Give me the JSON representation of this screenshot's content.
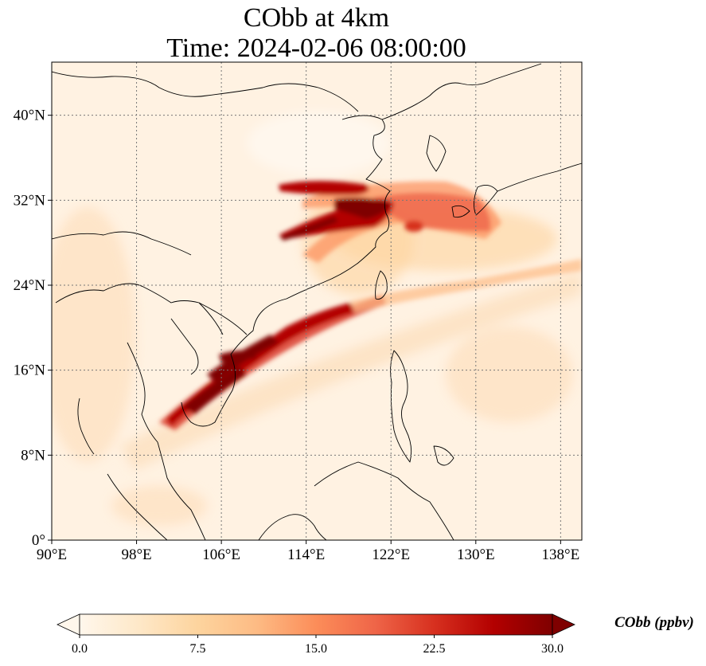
{
  "title": {
    "line1": "CObb at 4km",
    "line2": "Time: 2024-02-06 08:00:00"
  },
  "map": {
    "projection": "PlateCarree",
    "lon_range": [
      90,
      140
    ],
    "lat_range": [
      0,
      45
    ],
    "gridlines": "dotted",
    "colormap": "OrRd",
    "lon_ticks": [
      {
        "value": 90,
        "label": "90°E"
      },
      {
        "value": 98,
        "label": "98°E"
      },
      {
        "value": 106,
        "label": "106°E"
      },
      {
        "value": 114,
        "label": "114°E"
      },
      {
        "value": 122,
        "label": "122°E"
      },
      {
        "value": 130,
        "label": "130°E"
      },
      {
        "value": 138,
        "label": "138°E"
      }
    ],
    "lat_ticks": [
      {
        "value": 0,
        "label": "0°"
      },
      {
        "value": 8,
        "label": "8°N"
      },
      {
        "value": 16,
        "label": "16°N"
      },
      {
        "value": 24,
        "label": "24°N"
      },
      {
        "value": 32,
        "label": "32°N"
      },
      {
        "value": 40,
        "label": "40°N"
      }
    ]
  },
  "colorbar": {
    "title": "CObb (ppbv)",
    "min": 0,
    "max": 30,
    "extend": "both",
    "ticks": [
      {
        "value": 0,
        "label": "0.0"
      },
      {
        "value": 7.5,
        "label": "7.5"
      },
      {
        "value": 15,
        "label": "15.0"
      },
      {
        "value": 22.5,
        "label": "22.5"
      },
      {
        "value": 30,
        "label": "30.0"
      }
    ],
    "colors": [
      "#fff7ec",
      "#fee8c8",
      "#fdd49e",
      "#fdbb84",
      "#fc8d59",
      "#ef6548",
      "#d7301f",
      "#b30000",
      "#7f0000"
    ]
  }
}
